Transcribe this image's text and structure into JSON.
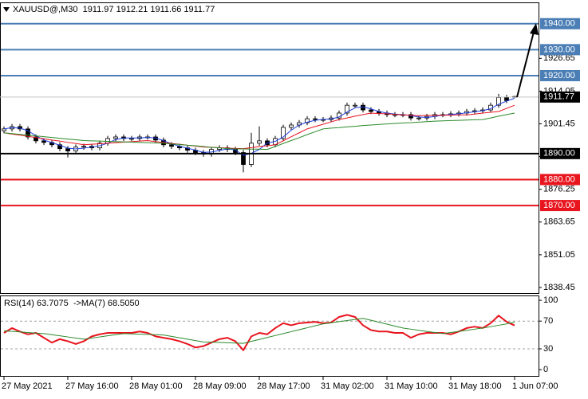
{
  "chart_data": [
    {
      "type": "candlestick",
      "title": "XAUUSD@,M30  1911.97 1912.21 1911.66 1911.77",
      "categories": [
        "27 May 2021",
        null,
        null,
        null,
        null,
        null,
        null,
        null,
        "27 May 16:00",
        null,
        null,
        null,
        null,
        null,
        null,
        null,
        "28 May 01:00",
        null,
        null,
        null,
        null,
        null,
        null,
        null,
        "28 May 09:00",
        null,
        null,
        null,
        null,
        null,
        null,
        null,
        "28 May 17:00",
        null,
        null,
        null,
        null,
        null,
        null,
        null,
        "31 May 02:00",
        null,
        null,
        null,
        null,
        null,
        null,
        null,
        "31 May 10:00",
        null,
        null,
        null,
        null,
        null,
        null,
        null,
        "31 May 18:00",
        null,
        null,
        null,
        null,
        null,
        null,
        null,
        "1 Jun 07:00"
      ],
      "open": [
        1898.8,
        1899.5,
        1900.4,
        1899.5,
        1896.4,
        1894.9,
        1894.3,
        1893.4,
        1891.9,
        1891.0,
        1892.5,
        1892.8,
        1892.2,
        1894.0,
        1895.8,
        1896.4,
        1895.8,
        1895.8,
        1896.4,
        1896.4,
        1895.2,
        1893.4,
        1892.8,
        1892.2,
        1891.3,
        1890.4,
        1889.8,
        1891.6,
        1892.2,
        1891.6,
        1890.4,
        1885.8,
        1894.0,
        1894.9,
        1893.4,
        1895.8,
        1900.1,
        1901.0,
        1901.9,
        1903.4,
        1903.1,
        1903.1,
        1903.7,
        1905.6,
        1908.6,
        1908.6,
        1906.8,
        1906.2,
        1905.6,
        1905.0,
        1905.0,
        1905.0,
        1903.7,
        1903.7,
        1904.3,
        1905.0,
        1905.0,
        1905.3,
        1905.6,
        1906.2,
        1906.5,
        1906.8,
        1908.6,
        1911.6,
        1911.97
      ],
      "high": [
        1900.5,
        1901.4,
        1901.4,
        1900.5,
        1897.4,
        1895.9,
        1895.3,
        1894.4,
        1892.9,
        1893.5,
        1893.8,
        1893.8,
        1895.0,
        1896.8,
        1897.4,
        1897.4,
        1896.8,
        1897.4,
        1897.4,
        1897.4,
        1896.2,
        1894.4,
        1893.8,
        1893.2,
        1892.3,
        1891.4,
        1892.6,
        1893.2,
        1893.2,
        1892.6,
        1891.4,
        1898.0,
        1900.5,
        1895.9,
        1896.8,
        1901.1,
        1902.0,
        1902.9,
        1904.4,
        1904.4,
        1904.1,
        1904.7,
        1906.6,
        1909.6,
        1909.6,
        1909.6,
        1907.8,
        1907.2,
        1906.6,
        1906.0,
        1906.0,
        1906.0,
        1904.7,
        1905.3,
        1906.0,
        1906.0,
        1906.3,
        1906.6,
        1907.2,
        1907.5,
        1907.8,
        1909.6,
        1913.0,
        1912.6,
        1912.21
      ],
      "low": [
        1897.8,
        1898.5,
        1898.5,
        1895.4,
        1893.9,
        1893.3,
        1892.4,
        1890.9,
        1888.5,
        1890.0,
        1891.5,
        1891.2,
        1891.2,
        1893.0,
        1894.8,
        1894.8,
        1894.8,
        1894.8,
        1895.4,
        1894.2,
        1892.4,
        1891.8,
        1891.2,
        1890.3,
        1889.4,
        1888.8,
        1888.8,
        1890.6,
        1890.6,
        1889.4,
        1882.8,
        1884.8,
        1893.0,
        1892.4,
        1892.4,
        1894.8,
        1899.1,
        1900.0,
        1900.9,
        1902.1,
        1902.1,
        1902.1,
        1902.7,
        1904.6,
        1907.6,
        1905.8,
        1905.2,
        1904.6,
        1904.0,
        1904.0,
        1904.0,
        1902.7,
        1902.7,
        1902.7,
        1903.3,
        1904.0,
        1904.0,
        1904.3,
        1904.6,
        1905.2,
        1905.5,
        1905.8,
        1907.6,
        1909.4,
        1911.66
      ],
      "close": [
        1899.5,
        1900.4,
        1899.5,
        1896.4,
        1894.9,
        1894.3,
        1893.4,
        1891.9,
        1891.0,
        1892.5,
        1892.8,
        1892.2,
        1894.0,
        1895.8,
        1896.4,
        1895.8,
        1895.8,
        1896.4,
        1896.4,
        1895.2,
        1893.4,
        1892.8,
        1892.2,
        1891.3,
        1890.4,
        1889.8,
        1891.6,
        1892.2,
        1891.6,
        1890.4,
        1885.8,
        1894.0,
        1894.9,
        1893.4,
        1895.8,
        1900.1,
        1901.0,
        1901.9,
        1903.4,
        1903.1,
        1903.1,
        1903.7,
        1905.6,
        1908.6,
        1908.6,
        1906.8,
        1906.2,
        1905.6,
        1905.0,
        1905.0,
        1905.0,
        1903.7,
        1903.7,
        1904.3,
        1905.0,
        1905.0,
        1905.3,
        1905.6,
        1906.2,
        1906.5,
        1906.8,
        1908.6,
        1911.6,
        1910.4,
        1911.77
      ],
      "up_color": "#ffffff",
      "down_color": "#000000",
      "series": [
        {
          "color": "#1f3fe0",
          "values": [
            1899.5,
            1900.0,
            1899.8,
            1898.8,
            1896.9,
            1895.2,
            1894.2,
            1893.2,
            1892.1,
            1891.8,
            1892.1,
            1892.5,
            1893.0,
            1894.0,
            1895.4,
            1896.0,
            1896.0,
            1896.0,
            1896.2,
            1896.0,
            1895.0,
            1893.8,
            1892.8,
            1892.1,
            1891.3,
            1890.5,
            1890.6,
            1891.2,
            1891.8,
            1891.4,
            1889.3,
            1890.1,
            1891.6,
            1894.1,
            1894.7,
            1896.4,
            1899.0,
            1901.0,
            1902.1,
            1902.8,
            1903.2,
            1903.3,
            1904.1,
            1906.0,
            1907.6,
            1908.0,
            1907.2,
            1906.2,
            1905.6,
            1905.2,
            1905.0,
            1904.6,
            1904.1,
            1903.9,
            1904.3,
            1904.8,
            1905.1,
            1905.3,
            1905.7,
            1906.1,
            1906.5,
            1907.3,
            1909.0,
            1910.2,
            1911.3
          ]
        },
        {
          "color": "#e8141e",
          "values": [
            1898.0,
            1897.5,
            1897.1,
            1896.6,
            1896.2,
            1895.7,
            1895.2,
            1894.8,
            1894.3,
            1893.9,
            1893.4,
            1893.6,
            1893.8,
            1894.0,
            1894.2,
            1894.4,
            1894.6,
            1894.8,
            1895.0,
            1894.6,
            1894.3,
            1893.9,
            1893.6,
            1893.2,
            1892.9,
            1892.5,
            1892.4,
            1892.3,
            1892.1,
            1892.0,
            1891.9,
            1892.3,
            1892.7,
            1893.0,
            1893.4,
            1894.9,
            1896.5,
            1898.0,
            1899.5,
            1900.4,
            1901.3,
            1902.2,
            1903.1,
            1903.7,
            1904.4,
            1905.0,
            1905.6,
            1905.4,
            1905.3,
            1905.1,
            1904.9,
            1904.8,
            1904.6,
            1904.7,
            1904.7,
            1904.8,
            1904.8,
            1904.9,
            1904.9,
            1905.2,
            1905.6,
            1905.9,
            1906.2,
            1907.4,
            1908.6
          ]
        },
        {
          "color": "#2a8a2a",
          "values": [
            1898.0,
            1897.7,
            1897.4,
            1897.1,
            1896.8,
            1896.5,
            1896.2,
            1895.9,
            1895.6,
            1895.3,
            1895.0,
            1894.9,
            1894.8,
            1894.7,
            1894.6,
            1894.5,
            1894.4,
            1894.3,
            1894.2,
            1894.1,
            1894.0,
            1893.7,
            1893.5,
            1893.2,
            1893.0,
            1892.7,
            1892.4,
            1892.2,
            1891.9,
            1891.8,
            1891.8,
            1891.7,
            1891.7,
            1891.6,
            1892.7,
            1893.9,
            1895.0,
            1896.1,
            1897.3,
            1898.4,
            1899.5,
            1899.8,
            1900.0,
            1900.3,
            1900.5,
            1900.8,
            1901.0,
            1901.2,
            1901.4,
            1901.6,
            1901.8,
            1901.9,
            1902.1,
            1902.3,
            1902.5,
            1902.6,
            1902.7,
            1902.8,
            1902.9,
            1903.0,
            1903.1,
            1903.7,
            1904.4,
            1905.0,
            1905.6
          ]
        }
      ],
      "levels": [
        {
          "value": 1940,
          "label": "1940.00",
          "color": "#4a7eb5"
        },
        {
          "value": 1930,
          "label": "1930.00",
          "color": "#4a7eb5"
        },
        {
          "value": 1920,
          "label": "1920.00",
          "color": "#4a7eb5"
        },
        {
          "value": 1890,
          "label": "1890.00",
          "color": "#000000"
        },
        {
          "value": 1880,
          "label": "1880.00",
          "color": "#e8141e"
        },
        {
          "value": 1870,
          "label": "1870.00",
          "color": "#e8141e"
        }
      ],
      "last_price": 1911.77,
      "ylim": [
        1836.3,
        1948.2
      ],
      "yticks": [
        1926.65,
        1914.05,
        1901.45,
        1888.85,
        1876.25,
        1863.65,
        1851.05,
        1838.45
      ]
    },
    {
      "type": "line",
      "title": "RSI(14) 63.7075  ->MA(7) 68.5050",
      "series": [
        {
          "color": "#e8141e",
          "values": [
            53,
            60,
            55,
            51,
            53,
            46,
            39,
            44,
            41,
            37,
            41,
            48,
            51,
            53,
            53,
            53,
            53,
            55,
            53,
            48,
            46,
            44,
            41,
            37,
            32,
            34,
            39,
            44,
            46,
            41,
            28,
            48,
            53,
            51,
            60,
            67,
            64,
            67,
            68,
            69,
            67,
            68,
            76,
            79,
            76,
            64,
            57,
            55,
            55,
            53,
            53,
            46,
            51,
            53,
            53,
            53,
            51,
            55,
            60,
            62,
            60,
            67,
            78,
            69,
            63.7
          ]
        },
        {
          "color": "#2a8a2a",
          "values": [
            56,
            55.2,
            54.4,
            53.6,
            52.8,
            52,
            50.4,
            48.8,
            47.2,
            45.6,
            44,
            45.6,
            47.2,
            48.8,
            50.4,
            52,
            51.6,
            51.2,
            50.8,
            50.4,
            50,
            48,
            46,
            44,
            42,
            40,
            39.6,
            39.2,
            38.8,
            38.4,
            38,
            40.8,
            43.6,
            46.4,
            49.2,
            52,
            54.8,
            57.6,
            60.4,
            63.2,
            66,
            67.6,
            69.2,
            70.8,
            72.4,
            74,
            71.2,
            68.4,
            65.6,
            62.8,
            60,
            58.4,
            56.8,
            55.2,
            53.6,
            52,
            53.6,
            55.2,
            56.8,
            58.4,
            60,
            62,
            64,
            66,
            68.5
          ]
        }
      ],
      "levels": [
        70,
        30
      ],
      "ylim": [
        -9,
        107
      ],
      "yticks": [
        100,
        70,
        30,
        0
      ]
    }
  ]
}
